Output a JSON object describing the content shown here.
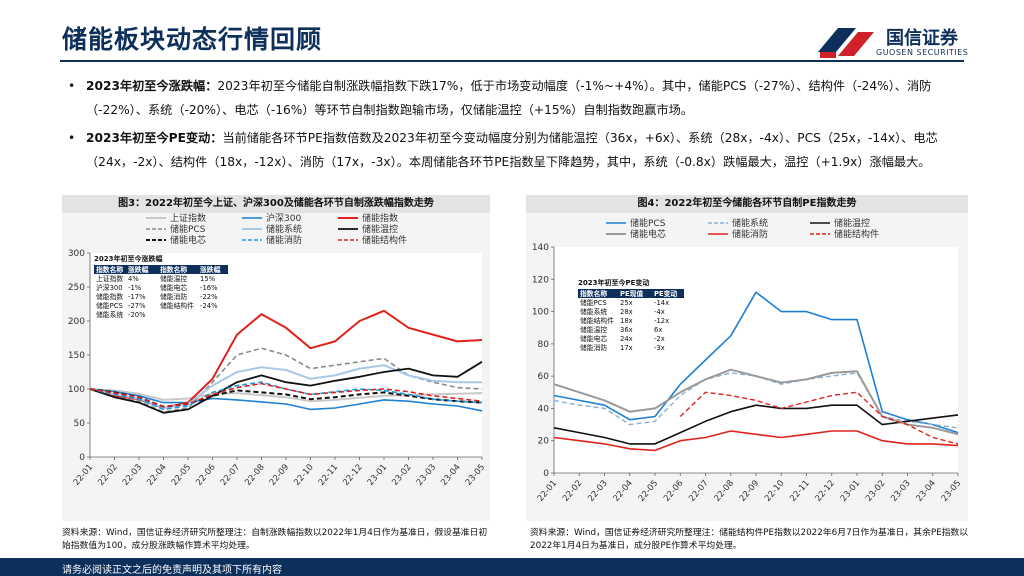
{
  "header": {
    "title": "储能板块动态行情回顾",
    "logo_cn": "国信证券",
    "logo_en": "GUOSEN SECURITIES"
  },
  "bullets": [
    {
      "lead": "2023年初至今涨跌幅：",
      "text": "2023年初至今储能自制涨跌幅指数下跌17%，低于市场变动幅度（-1%~+4%）。其中，储能PCS（-27%）、结构件（-24%）、消防（-22%）、系统（-20%）、电芯（-16%）等环节自制指数跑输市场，仅储能温控（+15%）自制指数跑赢市场。"
    },
    {
      "lead": "2023年初至今PE变动：",
      "text": "当前储能各环节PE指数倍数及2023年初至今变动幅度分别为储能温控（36x，+6x）、系统（28x，-4x）、PCS（25x，-14x）、电芯（24x，-2x）、结构件（18x，-12x）、消防（17x，-3x）。本周储能各环节PE指数呈下降趋势，其中，系统（-0.8x）跌幅最大，温控（+1.9x）涨幅最大。"
    }
  ],
  "footer": "请务必阅读正文之后的免责声明及其项下所有内容",
  "colors": {
    "brand": "#0d2f5c",
    "accent_red": "#d0202a"
  },
  "chart_data": [
    {
      "type": "line",
      "title": "图3：2022年初至今上证、沪深300及储能各环节自制涨跌幅指数走势",
      "x_ticks": [
        "22-01",
        "22-02",
        "22-03",
        "22-04",
        "22-05",
        "22-06",
        "22-07",
        "22-08",
        "22-09",
        "22-10",
        "22-11",
        "22-12",
        "23-01",
        "23-02",
        "23-03",
        "23-04",
        "23-05"
      ],
      "ylim": [
        0,
        300
      ],
      "y_ticks": [
        0,
        50,
        100,
        150,
        200,
        250,
        300
      ],
      "series": [
        {
          "name": "上证指数",
          "color": "#c8c8c8",
          "dash": "solid",
          "width": 2,
          "values": [
            100,
            98,
            93,
            84,
            86,
            93,
            94,
            91,
            88,
            82,
            84,
            87,
            90,
            91,
            92,
            93,
            94
          ]
        },
        {
          "name": "沪深300",
          "color": "#1f7fd2",
          "dash": "solid",
          "width": 1.6,
          "values": [
            100,
            96,
            90,
            80,
            80,
            86,
            84,
            81,
            78,
            70,
            72,
            78,
            84,
            82,
            78,
            75,
            68
          ]
        },
        {
          "name": "储能指数",
          "color": "#e1211b",
          "dash": "solid",
          "width": 2,
          "values": [
            100,
            90,
            85,
            72,
            80,
            115,
            180,
            210,
            190,
            160,
            170,
            200,
            215,
            190,
            180,
            170,
            172
          ]
        },
        {
          "name": "储能PCS",
          "color": "#8a8a8a",
          "dash": "dash",
          "width": 1.6,
          "values": [
            100,
            88,
            82,
            66,
            72,
            110,
            150,
            160,
            150,
            130,
            135,
            140,
            145,
            120,
            110,
            102,
            100
          ]
        },
        {
          "name": "储能系统",
          "color": "#a9c8e8",
          "dash": "solid",
          "width": 2,
          "values": [
            100,
            92,
            86,
            72,
            78,
            105,
            125,
            132,
            128,
            115,
            120,
            130,
            135,
            120,
            112,
            110,
            110
          ]
        },
        {
          "name": "储能温控",
          "color": "#111111",
          "dash": "solid",
          "width": 1.8,
          "values": [
            100,
            88,
            80,
            65,
            70,
            90,
            110,
            120,
            110,
            105,
            112,
            118,
            125,
            130,
            120,
            118,
            140
          ]
        },
        {
          "name": "储能电芯",
          "color": "#111111",
          "dash": "dash",
          "width": 2,
          "values": [
            100,
            95,
            88,
            74,
            78,
            90,
            98,
            95,
            92,
            85,
            88,
            92,
            95,
            90,
            85,
            82,
            80
          ]
        },
        {
          "name": "储能消防",
          "color": "#1f9ae0",
          "dash": "dash",
          "width": 1.6,
          "values": [
            100,
            92,
            85,
            70,
            75,
            95,
            105,
            110,
            100,
            92,
            96,
            100,
            98,
            92,
            85,
            82,
            80
          ]
        },
        {
          "name": "储能结构件",
          "color": "#e1211b",
          "dash": "dash",
          "width": 1.6,
          "values": [
            100,
            94,
            88,
            74,
            78,
            92,
            102,
            108,
            100,
            92,
            95,
            98,
            100,
            96,
            90,
            86,
            82
          ]
        }
      ],
      "inset_table": {
        "title": "2023年初至今涨跌幅",
        "headers": [
          "指数名称",
          "涨跌幅",
          "指数名称",
          "涨跌幅"
        ],
        "rows": [
          [
            "上证指数",
            "4%",
            "储能温控",
            "15%"
          ],
          [
            "沪深300",
            "-1%",
            "储能电芯",
            "-16%"
          ],
          [
            "储能指数",
            "-17%",
            "储能消防",
            "-22%"
          ],
          [
            "储能PCS",
            "-27%",
            "储能结构件",
            "-24%"
          ],
          [
            "储能系统",
            "-20%",
            "",
            ""
          ]
        ]
      },
      "source": "资料来源：Wind，国信证券经济研究所整理注：自制涨跌幅指数以2022年1月4日作为基准日，假设基准日初始指数值为100，成分股涨跌幅作算术平均处理。"
    },
    {
      "type": "line",
      "title": "图4：2022年初至今储能各环节自制PE指数走势",
      "x_ticks": [
        "22-01",
        "22-02",
        "22-03",
        "22-04",
        "22-05",
        "22-06",
        "22-07",
        "22-08",
        "22-09",
        "22-10",
        "22-11",
        "22-12",
        "23-01",
        "23-02",
        "23-03",
        "23-04",
        "23-05"
      ],
      "ylim": [
        0,
        140
      ],
      "y_ticks": [
        0,
        20,
        40,
        60,
        80,
        100,
        120,
        140
      ],
      "series": [
        {
          "name": "储能PCS",
          "color": "#1f7fd2",
          "dash": "solid",
          "width": 1.6,
          "values": [
            48,
            45,
            42,
            33,
            35,
            55,
            70,
            85,
            112,
            100,
            100,
            95,
            95,
            38,
            33,
            30,
            25
          ]
        },
        {
          "name": "储能系统",
          "color": "#8ab0d8",
          "dash": "dash",
          "width": 1.4,
          "values": [
            45,
            42,
            40,
            30,
            32,
            48,
            58,
            62,
            60,
            55,
            58,
            60,
            62,
            35,
            32,
            30,
            28
          ]
        },
        {
          "name": "储能温控",
          "color": "#111111",
          "dash": "solid",
          "width": 1.6,
          "values": [
            28,
            25,
            22,
            18,
            18,
            25,
            32,
            38,
            42,
            40,
            40,
            42,
            42,
            30,
            32,
            34,
            36
          ]
        },
        {
          "name": "储能电芯",
          "color": "#9a9a9a",
          "dash": "solid",
          "width": 2,
          "values": [
            55,
            50,
            45,
            38,
            40,
            50,
            58,
            64,
            60,
            56,
            58,
            62,
            63,
            35,
            30,
            28,
            24
          ]
        },
        {
          "name": "储能消防",
          "color": "#e1211b",
          "dash": "solid",
          "width": 1.6,
          "values": [
            22,
            20,
            18,
            15,
            14,
            20,
            22,
            26,
            24,
            22,
            24,
            26,
            26,
            20,
            18,
            18,
            17
          ]
        },
        {
          "name": "储能结构件",
          "color": "#e1211b",
          "dash": "dash",
          "width": 1.4,
          "values": [
            null,
            null,
            null,
            null,
            null,
            35,
            50,
            48,
            45,
            40,
            44,
            48,
            50,
            35,
            30,
            22,
            18
          ]
        }
      ],
      "inset_table": {
        "title": "2023年初至今PE变动",
        "headers": [
          "指数名称",
          "PE现值",
          "PE变动"
        ],
        "rows": [
          [
            "储能PCS",
            "25x",
            "-14x"
          ],
          [
            "储能系统",
            "28x",
            "-4x"
          ],
          [
            "储能结构件",
            "18x",
            "-12x"
          ],
          [
            "储能温控",
            "36x",
            "6x"
          ],
          [
            "储能电芯",
            "24x",
            "-2x"
          ],
          [
            "储能消防",
            "17x",
            "-3x"
          ]
        ]
      },
      "source": "资料来源：Wind，国信证券经济研究所整理注：储能结构件PE指数以2022年6月7日作为基准日，其余PE指数以2022年1月4日为基准日，成分股PE作算术平均处理。"
    }
  ]
}
